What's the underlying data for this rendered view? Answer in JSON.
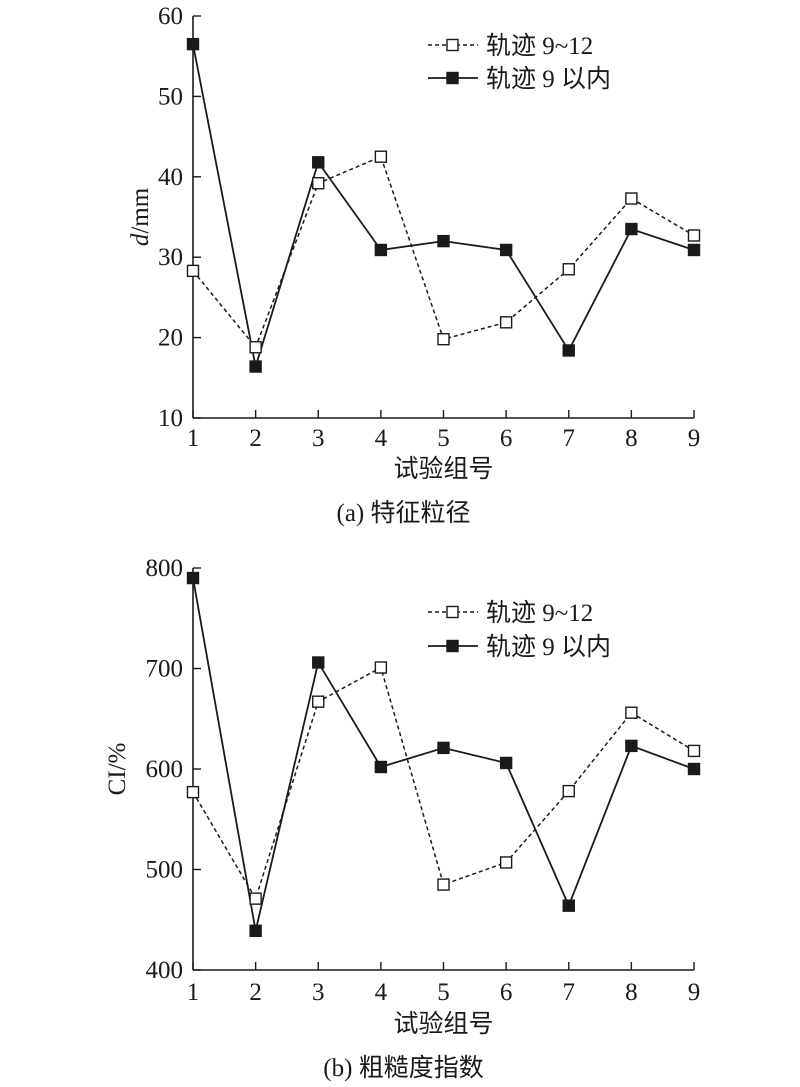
{
  "chart_data": [
    {
      "type": "line",
      "caption": "(a) 特征粒径",
      "xlabel": "试验组号",
      "ylabel_italic": "d",
      "ylabel_rest": "/mm",
      "categories": [
        "1",
        "2",
        "3",
        "4",
        "5",
        "6",
        "7",
        "8",
        "9"
      ],
      "yticks": [
        10,
        20,
        30,
        40,
        50,
        60
      ],
      "ylim": [
        10,
        60
      ],
      "legend_position": "top-right",
      "series": [
        {
          "name": "轨迹 9~12",
          "marker": "open-square",
          "line": "dashed",
          "values": [
            28.3,
            18.8,
            39.2,
            42.5,
            19.8,
            21.9,
            28.5,
            37.3,
            32.7
          ]
        },
        {
          "name": "轨迹 9 以内",
          "marker": "filled-square",
          "line": "solid",
          "values": [
            56.5,
            16.4,
            41.8,
            30.9,
            32.0,
            30.9,
            18.4,
            33.5,
            30.9
          ]
        }
      ]
    },
    {
      "type": "line",
      "caption": "(b) 粗糙度指数",
      "xlabel": "试验组号",
      "ylabel_italic": "",
      "ylabel_rest": "CI/%",
      "categories": [
        "1",
        "2",
        "3",
        "4",
        "5",
        "6",
        "7",
        "8",
        "9"
      ],
      "yticks": [
        400,
        500,
        600,
        700,
        800
      ],
      "ylim": [
        400,
        800
      ],
      "legend_position": "top-right",
      "series": [
        {
          "name": "轨迹 9~12",
          "marker": "open-square",
          "line": "dashed",
          "values": [
            577,
            471,
            667,
            701,
            485,
            507,
            578,
            656,
            618
          ]
        },
        {
          "name": "轨迹 9 以内",
          "marker": "filled-square",
          "line": "solid",
          "values": [
            790,
            439,
            706,
            602,
            621,
            606,
            464,
            623,
            600
          ]
        }
      ]
    }
  ]
}
